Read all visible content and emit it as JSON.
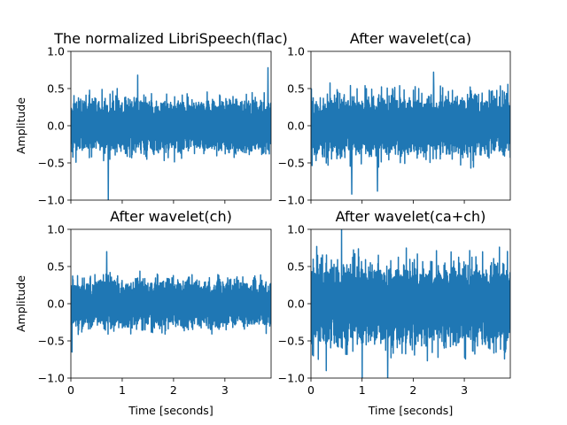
{
  "chart_data": [
    {
      "type": "line",
      "title": "The normalized LibriSpeech(flac)",
      "xlabel": "",
      "ylabel": "Amplitude",
      "xlim": [
        0,
        3.9
      ],
      "ylim": [
        -1.0,
        1.0
      ],
      "yticks": [
        -1.0,
        -0.5,
        0.0,
        0.5,
        1.0
      ],
      "ytick_labels": [
        "−1.0",
        "−0.5",
        "0.0",
        "0.5",
        "1.0"
      ],
      "show_x_ticklabels": false,
      "show_y_ticklabels": true,
      "color": "#1f77b4",
      "envelope": [
        0.32,
        0.5
      ],
      "spikes": [
        {
          "x": 0.73,
          "y": -1.0
        },
        {
          "x": 3.84,
          "y": 0.78
        },
        {
          "x": 1.3,
          "y": 0.68
        }
      ]
    },
    {
      "type": "line",
      "title": "After wavelet(ca)",
      "xlabel": "",
      "ylabel": "",
      "xlim": [
        0,
        3.9
      ],
      "ylim": [
        -1.0,
        1.0
      ],
      "yticks": [
        -1.0,
        -0.5,
        0.0,
        0.5,
        1.0
      ],
      "ytick_labels": [
        "−1.0",
        "−0.5",
        "0.0",
        "0.5",
        "1.0"
      ],
      "show_x_ticklabels": false,
      "show_y_ticklabels": true,
      "color": "#1f77b4",
      "envelope": [
        0.32,
        0.6
      ],
      "spikes": [
        {
          "x": 0.8,
          "y": -0.92
        },
        {
          "x": 1.3,
          "y": -0.88
        },
        {
          "x": 2.4,
          "y": 0.72
        }
      ]
    },
    {
      "type": "line",
      "title": "After wavelet(ch)",
      "xlabel": "Time [seconds]",
      "ylabel": "Amplitude",
      "xlim": [
        0,
        3.9
      ],
      "ylim": [
        -1.0,
        1.0
      ],
      "xticks": [
        0,
        1,
        2,
        3
      ],
      "xtick_labels": [
        "0",
        "1",
        "2",
        "3"
      ],
      "yticks": [
        -1.0,
        -0.5,
        0.0,
        0.5,
        1.0
      ],
      "ytick_labels": [
        "−1.0",
        "−0.5",
        "0.0",
        "0.5",
        "1.0"
      ],
      "show_x_ticklabels": true,
      "show_y_ticklabels": true,
      "color": "#1f77b4",
      "envelope": [
        0.28,
        0.45
      ],
      "spikes": [
        {
          "x": 0.7,
          "y": -0.88
        },
        {
          "x": 0.7,
          "y": 0.7
        },
        {
          "x": 0.02,
          "y": -0.65
        }
      ]
    },
    {
      "type": "line",
      "title": "After wavelet(ca+ch)",
      "xlabel": "Time [seconds]",
      "ylabel": "",
      "xlim": [
        0,
        3.9
      ],
      "ylim": [
        -1.0,
        1.0
      ],
      "xticks": [
        0,
        1,
        2,
        3
      ],
      "xtick_labels": [
        "0",
        "1",
        "2",
        "3"
      ],
      "yticks": [
        -1.0,
        -0.5,
        0.0,
        0.5,
        1.0
      ],
      "ytick_labels": [
        "−1.0",
        "−0.5",
        "0.0",
        "0.5",
        "1.0"
      ],
      "show_x_ticklabels": true,
      "show_y_ticklabels": true,
      "color": "#1f77b4",
      "envelope": [
        0.45,
        0.8
      ],
      "spikes": [
        {
          "x": 0.6,
          "y": 1.0
        },
        {
          "x": 1.0,
          "y": -1.0
        },
        {
          "x": 1.5,
          "y": -1.0
        },
        {
          "x": 0.3,
          "y": -0.9
        }
      ]
    }
  ]
}
